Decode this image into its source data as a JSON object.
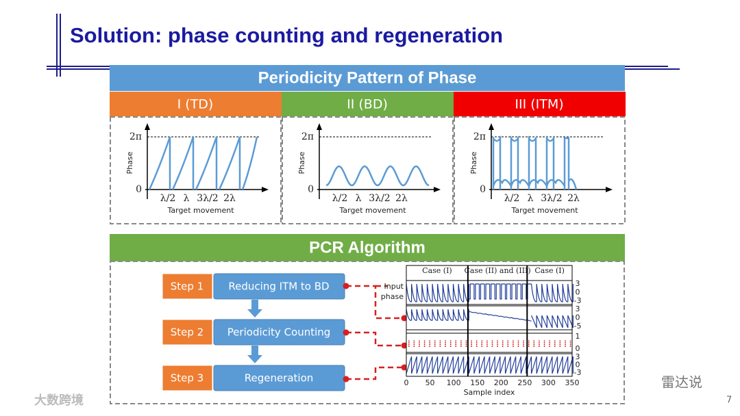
{
  "title": "Solution: phase counting and regeneration",
  "periodicity": {
    "header": "Periodicity Pattern of Phase",
    "panels": [
      {
        "label": "I (TD)",
        "y_label": "Phase",
        "y_ticks": [
          "2π",
          "0"
        ],
        "x_ticks": [
          "λ/2",
          "λ",
          "3λ/2",
          "2λ"
        ],
        "x_label": "Target movement"
      },
      {
        "label": "II (BD)",
        "y_label": "Phase",
        "y_ticks": [
          "2π",
          "0"
        ],
        "x_ticks": [
          "λ/2",
          "λ",
          "3λ/2",
          "2λ"
        ],
        "x_label": "Target movement"
      },
      {
        "label": "III (ITM)",
        "y_label": "Phase",
        "y_ticks": [
          "2π",
          "0"
        ],
        "x_ticks": [
          "λ/2",
          "λ",
          "3λ/2",
          "2λ"
        ],
        "x_label": "Target movement"
      }
    ]
  },
  "pcr": {
    "header": "PCR Algorithm",
    "steps": [
      {
        "step": "Step 1",
        "text": "Reducing ITM to BD"
      },
      {
        "step": "Step 2",
        "text": "Periodicity Counting"
      },
      {
        "step": "Step 3",
        "text": "Regeneration"
      }
    ],
    "plot": {
      "cases": [
        "Case (I)",
        "Case (II) and (III)",
        "Case (I)"
      ],
      "input_label": [
        "Input",
        "phase"
      ],
      "right_ticks": [
        [
          "3",
          "0",
          "-3"
        ],
        [
          "3",
          "0",
          "-5"
        ],
        [
          "1",
          "0"
        ],
        [
          "3",
          "0",
          "-3"
        ]
      ],
      "x_ticks": [
        "0",
        "50",
        "100",
        "150",
        "200",
        "250",
        "300",
        "350"
      ],
      "x_label": "Sample index"
    }
  },
  "page_number": "7",
  "watermarks": [
    "大数跨境",
    "雷达说"
  ]
}
